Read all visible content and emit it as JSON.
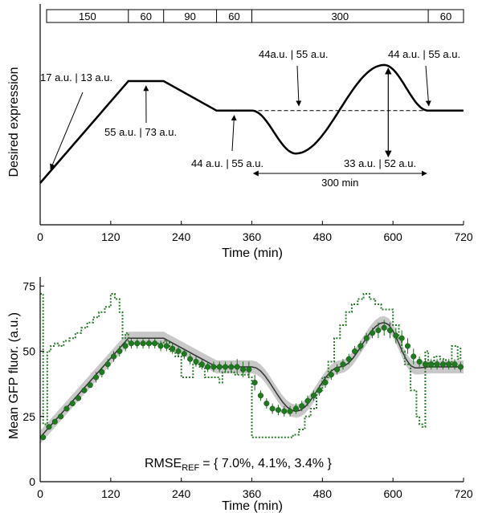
{
  "chart_data": [
    {
      "type": "line",
      "xlabel": "Time (min)",
      "ylabel": "Desired expression",
      "xlim": [
        0,
        720
      ],
      "xticks": [
        0,
        120,
        240,
        360,
        480,
        600,
        720
      ],
      "xtick_labels": [
        "0",
        "120",
        "240",
        "360",
        "480",
        "600",
        "720"
      ],
      "grid": false,
      "phase_bar": {
        "durations": [
          150,
          60,
          90,
          60,
          300,
          60
        ],
        "labels": [
          "150",
          "60",
          "90",
          "60",
          "300",
          "60"
        ]
      },
      "profile": {
        "x": [
          0,
          150,
          210,
          300,
          360,
          435,
          585,
          660,
          720
        ],
        "y": [
          17,
          55,
          55,
          44,
          44,
          28,
          61,
          44,
          44
        ],
        "shape": [
          "ramp",
          "hold",
          "ramp",
          "hold",
          "cosine",
          "cosine",
          "cosine",
          "hold"
        ]
      },
      "reference_line": {
        "x": [
          360,
          660
        ],
        "y": 44,
        "style": "dashed"
      },
      "annotations": [
        {
          "text": "17 a.u. | 13 a.u.",
          "points_to": [
            15,
            21
          ]
        },
        {
          "text": "55 a.u. | 73 a.u.",
          "points_to": [
            180,
            55
          ]
        },
        {
          "text": "44 a.u. | 55 a.u.",
          "points_to": [
            330,
            44
          ]
        },
        {
          "text": "44a.u. | 55 a.u.",
          "points_to": [
            440,
            44
          ]
        },
        {
          "text": "44 a.u. | 55 a.u.",
          "points_to": [
            665,
            44
          ]
        },
        {
          "text": "33 a.u. | 52 a.u.",
          "range": {
            "x": 592,
            "y": [
              28,
              61
            ]
          }
        }
      ],
      "span_annotation": {
        "text": "300 min",
        "x": [
          360,
          660
        ]
      }
    },
    {
      "type": "line",
      "xlabel": "Time (min)",
      "ylabel": "Mean GFP fluor. (a.u.)",
      "xlim": [
        0,
        720
      ],
      "ylim": [
        0,
        80
      ],
      "xticks": [
        0,
        120,
        240,
        360,
        480,
        600,
        720
      ],
      "xtick_labels": [
        "0",
        "120",
        "240",
        "360",
        "480",
        "600",
        "720"
      ],
      "yticks": [
        0,
        25,
        50,
        75
      ],
      "ytick_labels": [
        "0",
        "25",
        "50",
        "75"
      ],
      "grid": false,
      "rmse_label": {
        "prefix": "RMSE",
        "subscript": "REF",
        "values": "= { 7.0%, 4.1%, 3.4% }"
      },
      "series": [
        {
          "style": "reference-with-band",
          "band_halfwidth": 2.5,
          "x": [
            0,
            150,
            210,
            300,
            360,
            367.5,
            375,
            382.5,
            390,
            397.5,
            405,
            412.5,
            420,
            427.5,
            435,
            442.5,
            450,
            457.5,
            465,
            472.5,
            480,
            487.5,
            495,
            502.5,
            510,
            517.5,
            525,
            532.5,
            540,
            547.5,
            555,
            562.5,
            570,
            577.5,
            585,
            592.5,
            600,
            607.5,
            615,
            622.5,
            630,
            637.5,
            645,
            652.5,
            660,
            720
          ],
          "y": [
            17,
            55,
            55,
            44,
            44,
            43.6,
            42.4,
            40.5,
            38.1,
            35.5,
            32.9,
            30.5,
            28.6,
            27.4,
            27,
            27.4,
            28.6,
            30.5,
            32.9,
            35.5,
            38.1,
            40.5,
            42.4,
            43.6,
            44,
            44.4,
            45.6,
            47.5,
            49.9,
            52.5,
            55.1,
            57.5,
            59.4,
            60.6,
            61,
            60.2,
            57.8,
            54.3,
            50.4,
            46.9,
            44.5,
            43.6,
            43.6,
            43.8,
            44,
            44
          ]
        },
        {
          "style": "points-with-errorbars",
          "x": [
            5,
            15,
            25,
            35,
            45,
            55,
            65,
            75,
            85,
            95,
            105,
            115,
            125,
            135,
            145,
            155,
            165,
            175,
            185,
            195,
            205,
            215,
            225,
            235,
            245,
            255,
            265,
            275,
            285,
            295,
            305,
            315,
            325,
            335,
            345,
            355,
            365,
            375,
            385,
            395,
            405,
            415,
            425,
            435,
            445,
            455,
            465,
            475,
            485,
            495,
            505,
            515,
            525,
            535,
            545,
            555,
            565,
            575,
            585,
            595,
            605,
            615,
            625,
            635,
            645,
            655,
            665,
            675,
            685,
            695,
            705,
            715
          ],
          "y": [
            17,
            21,
            23,
            25,
            28,
            30,
            32,
            35,
            37,
            40,
            42,
            45,
            48,
            50,
            52,
            53,
            53,
            53,
            53,
            53,
            52,
            52,
            51,
            50,
            49,
            47,
            46,
            45,
            44,
            44,
            44,
            44,
            44,
            44,
            43,
            43,
            38,
            33,
            30,
            28,
            27.5,
            27,
            27,
            28,
            29,
            31,
            33,
            35,
            38,
            41,
            43,
            45,
            47,
            50,
            52,
            55,
            57,
            58,
            59,
            58,
            56,
            55,
            52,
            48,
            46,
            45,
            45,
            45,
            45,
            45,
            45,
            44
          ],
          "err": [
            1,
            1,
            1,
            1,
            1,
            1,
            1,
            1,
            1,
            2,
            2,
            2,
            2,
            2,
            2,
            2,
            2,
            2,
            2,
            2,
            2,
            2,
            2,
            2,
            2,
            2,
            2,
            2,
            2,
            2,
            2,
            2,
            2,
            3,
            3,
            3,
            3,
            2,
            2,
            2,
            2,
            2,
            2,
            2,
            2,
            2,
            2,
            2,
            2,
            2,
            2,
            2,
            2,
            2,
            2,
            2,
            2,
            3,
            3,
            3,
            3,
            3,
            3,
            3,
            2,
            2,
            2,
            2,
            2,
            2,
            2,
            2
          ]
        },
        {
          "style": "dotted-input",
          "step_x": [
            0,
            3,
            5,
            12,
            18,
            25,
            32,
            40,
            50,
            60,
            70,
            80,
            90,
            100,
            110,
            120,
            127,
            135,
            140,
            145,
            150,
            160,
            170,
            180,
            190,
            210,
            220,
            230,
            240,
            250,
            260,
            270,
            280,
            290,
            300,
            305,
            310,
            320,
            330,
            340,
            350,
            355,
            360,
            375,
            390,
            410,
            420,
            430,
            440,
            450,
            460,
            470,
            480,
            490,
            500,
            510,
            520,
            530,
            540,
            550,
            560,
            570,
            580,
            590,
            600,
            610,
            615,
            620,
            630,
            640,
            645,
            650,
            655,
            660,
            670,
            680,
            690,
            700,
            710,
            715
          ],
          "step_y": [
            72,
            72,
            22,
            50,
            52,
            53,
            52,
            54,
            55,
            57,
            59,
            61,
            63,
            65,
            67,
            72,
            70,
            65,
            55,
            57,
            53,
            53,
            53,
            53,
            53,
            54,
            50,
            48,
            40,
            40,
            45,
            44,
            40,
            40,
            40,
            38,
            42,
            42,
            41,
            41,
            41,
            40,
            17,
            17,
            17,
            17,
            17,
            18,
            20,
            25,
            28,
            35,
            40,
            46,
            55,
            60,
            65,
            68,
            70,
            72,
            70,
            68,
            66,
            66,
            60,
            55,
            50,
            45,
            35,
            25,
            22,
            21,
            50,
            44,
            48,
            47,
            45,
            52,
            47,
            52
          ]
        }
      ]
    }
  ]
}
